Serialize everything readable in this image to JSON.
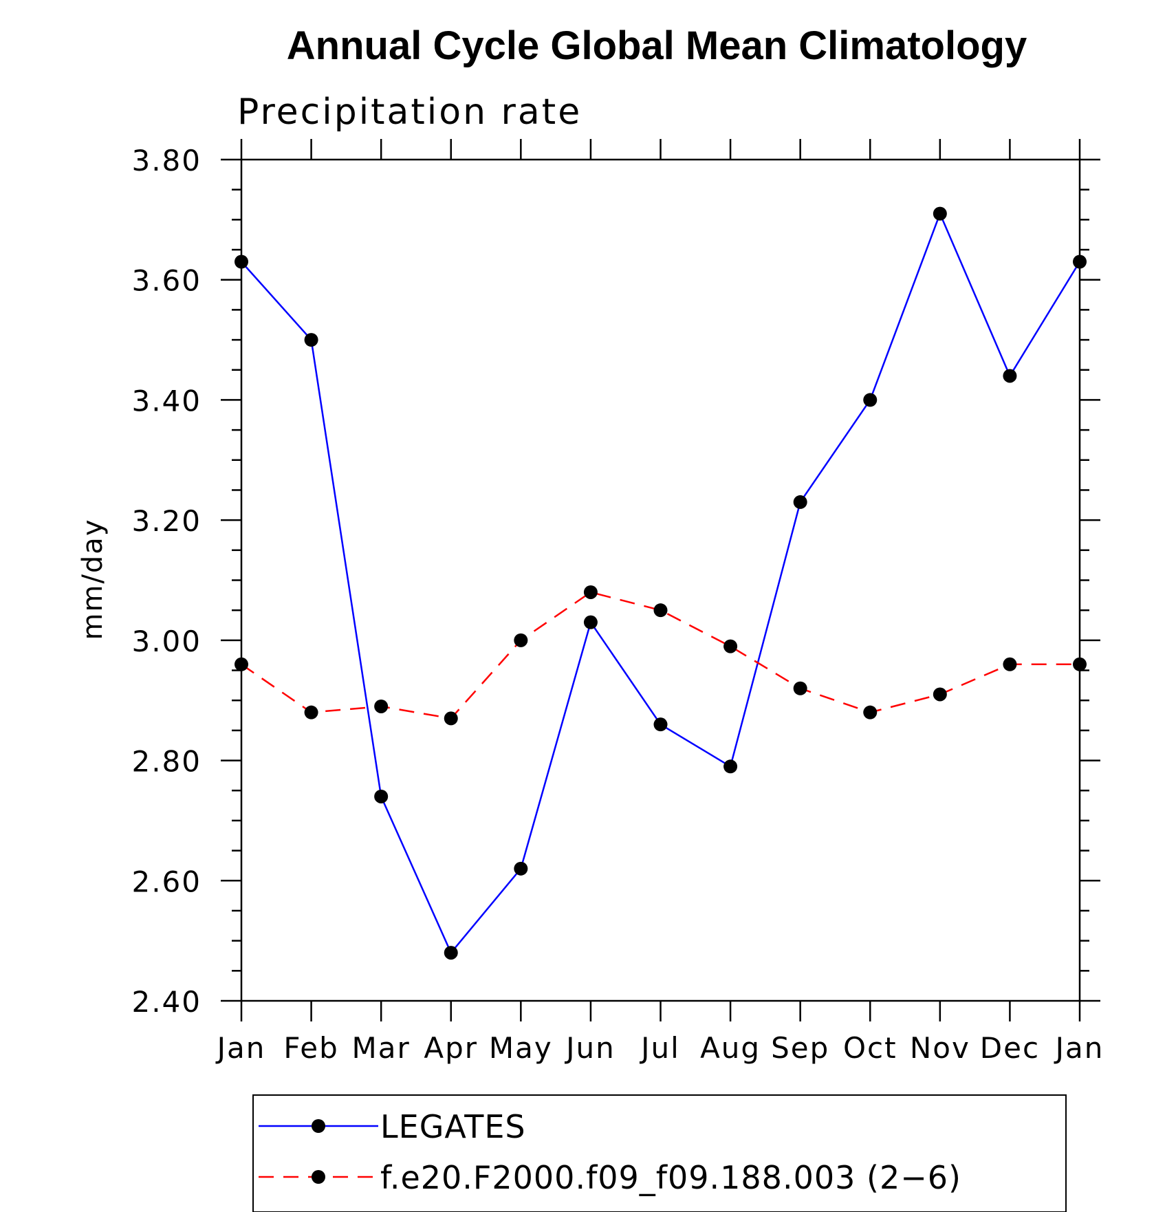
{
  "chart_data": {
    "type": "line",
    "title": "Annual Cycle Global Mean Climatology",
    "subtitle": "Precipitation rate",
    "ylabel": "mm/day",
    "xlabel": "",
    "categories": [
      "Jan",
      "Feb",
      "Mar",
      "Apr",
      "May",
      "Jun",
      "Jul",
      "Aug",
      "Sep",
      "Oct",
      "Nov",
      "Dec",
      "Jan"
    ],
    "ylim": [
      2.4,
      3.8
    ],
    "yticks": [
      "3.80",
      "3.60",
      "3.40",
      "3.20",
      "3.00",
      "2.80",
      "2.60",
      "2.40"
    ],
    "series": [
      {
        "name": "LEGATES",
        "color": "#0000ff",
        "dashed": false,
        "values": [
          3.63,
          3.5,
          2.74,
          2.48,
          2.62,
          3.03,
          2.86,
          2.79,
          3.23,
          3.4,
          3.71,
          3.44,
          3.63
        ]
      },
      {
        "name": "f.e20.F2000.f09_f09.188.003 (2−6)",
        "color": "#ff0000",
        "dashed": true,
        "values": [
          2.96,
          2.88,
          2.89,
          2.87,
          3.0,
          3.08,
          3.05,
          2.99,
          2.92,
          2.88,
          2.91,
          2.96,
          2.96
        ]
      }
    ],
    "legend_position": "bottom",
    "grid": false
  }
}
